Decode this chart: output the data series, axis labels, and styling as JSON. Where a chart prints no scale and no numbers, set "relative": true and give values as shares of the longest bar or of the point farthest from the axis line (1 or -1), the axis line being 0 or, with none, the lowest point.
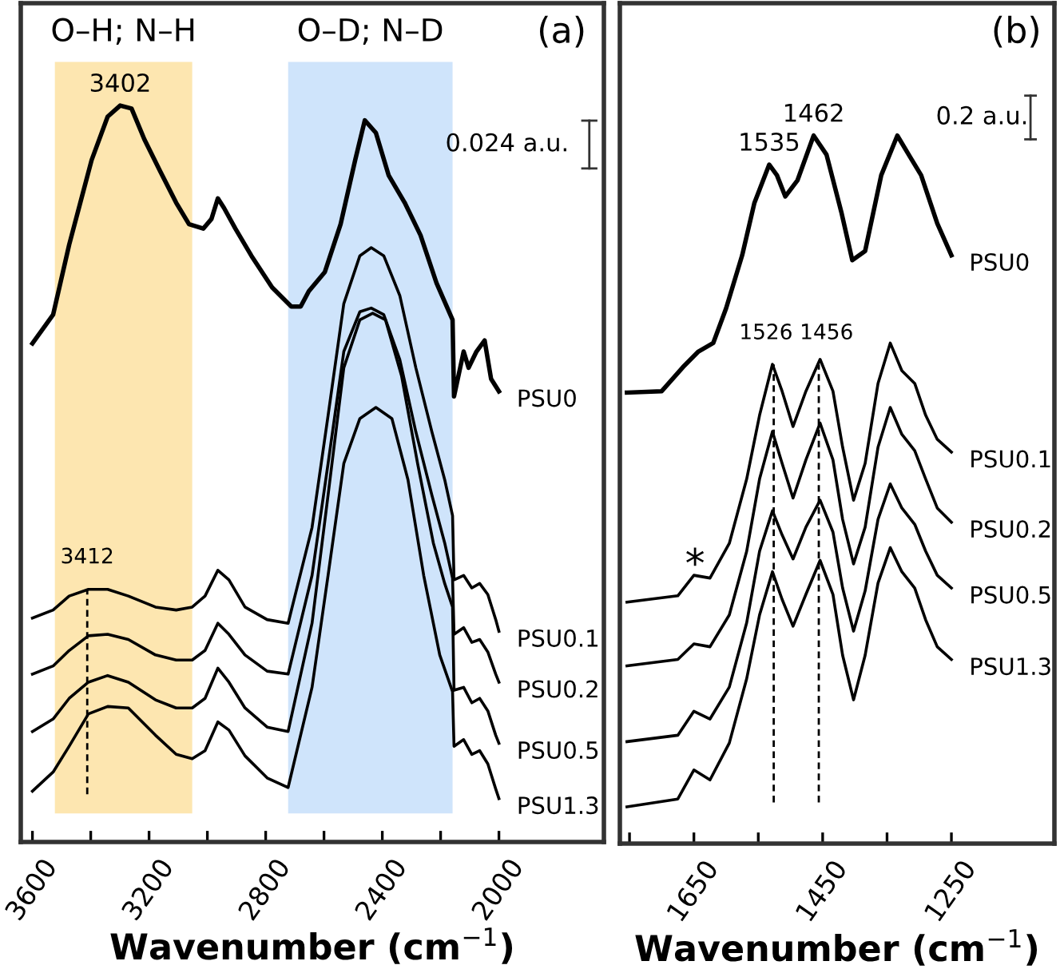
{
  "chart_data": [
    {
      "type": "line",
      "title": "(a)",
      "xlabel": "Wavenumber (cm$^{−1}$)",
      "relative": true,
      "xlim": [
        3640,
        1640
      ],
      "xticks": [
        3600,
        {
          "value": 3400,
          "label": null
        },
        3200,
        {
          "value": 3000,
          "label": null
        },
        2800,
        {
          "value": 2600,
          "label": null
        },
        2400,
        {
          "value": 2200,
          "label": null
        },
        2000
      ],
      "bands": [
        {
          "axis": "x",
          "from": 3523,
          "to": 3052,
          "label": "O–H; N–H",
          "color": "#fbcd61"
        },
        {
          "axis": "x",
          "from": 2723,
          "to": 2159,
          "label": "O–D; N–D",
          "color": "#9fc9f7"
        }
      ],
      "ref_lines": [
        {
          "axis": "x",
          "value": 3412,
          "label": "3412",
          "line_style": "dashed"
        }
      ],
      "annotations": [
        "0.024 a.u.",
        {
          "text": "3402",
          "x": 3299,
          "y": 1.0
        }
      ],
      "series": [
        {
          "name": "PSU0",
          "color": "#000000",
          "x": [
            3600,
            3529,
            3474,
            3397,
            3342,
            3299,
            3260,
            3216,
            3162,
            3107,
            3063,
            3014,
            2986,
            2964,
            2943,
            2904,
            2849,
            2778,
            2712,
            2680,
            2652,
            2597,
            2543,
            2493,
            2460,
            2422,
            2378,
            2323,
            2269,
            2214,
            2159,
            2154,
            2121,
            2104,
            2077,
            2049,
            2027,
            2000
          ],
          "values": [
            0.677,
            0.716,
            0.811,
            0.926,
            0.985,
            1.0,
            0.996,
            0.954,
            0.911,
            0.868,
            0.839,
            0.833,
            0.846,
            0.874,
            0.861,
            0.833,
            0.796,
            0.753,
            0.727,
            0.727,
            0.748,
            0.774,
            0.839,
            0.926,
            0.98,
            0.963,
            0.905,
            0.868,
            0.824,
            0.759,
            0.709,
            0.605,
            0.666,
            0.644,
            0.666,
            0.681,
            0.629,
            0.612
          ]
        },
        {
          "name": "PSU0.1",
          "color": "#000000",
          "x": [
            3600,
            3529,
            3474,
            3408,
            3342,
            3271,
            3178,
            3107,
            3052,
            3008,
            2964,
            2926,
            2871,
            2795,
            2723,
            2641,
            2586,
            2532,
            2477,
            2438,
            2395,
            2340,
            2285,
            2230,
            2186,
            2159,
            2154,
            2121,
            2093,
            2066,
            2038,
            2011,
            2000
          ],
          "values": [
            0.304,
            0.315,
            0.334,
            0.343,
            0.343,
            0.334,
            0.319,
            0.315,
            0.319,
            0.334,
            0.369,
            0.356,
            0.319,
            0.302,
            0.297,
            0.427,
            0.579,
            0.731,
            0.796,
            0.807,
            0.796,
            0.742,
            0.644,
            0.557,
            0.492,
            0.443,
            0.356,
            0.362,
            0.345,
            0.351,
            0.336,
            0.302,
            0.286
          ]
        },
        {
          "name": "PSU0.2",
          "color": "#000000",
          "x": [
            3600,
            3529,
            3474,
            3408,
            3342,
            3271,
            3178,
            3107,
            3052,
            3008,
            2964,
            2926,
            2871,
            2795,
            2723,
            2641,
            2586,
            2532,
            2477,
            2438,
            2395,
            2340,
            2285,
            2230,
            2186,
            2159,
            2154,
            2121,
            2093,
            2066,
            2038,
            2011,
            2000
          ],
          "values": [
            0.228,
            0.239,
            0.26,
            0.28,
            0.282,
            0.275,
            0.254,
            0.247,
            0.247,
            0.26,
            0.297,
            0.282,
            0.254,
            0.232,
            0.228,
            0.362,
            0.514,
            0.666,
            0.72,
            0.725,
            0.716,
            0.655,
            0.557,
            0.471,
            0.406,
            0.358,
            0.282,
            0.291,
            0.271,
            0.275,
            0.258,
            0.228,
            0.217
          ]
        },
        {
          "name": "PSU0.5",
          "color": "#000000",
          "x": [
            3600,
            3529,
            3474,
            3408,
            3342,
            3271,
            3178,
            3107,
            3052,
            3008,
            2964,
            2926,
            2871,
            2795,
            2723,
            2641,
            2586,
            2532,
            2477,
            2433,
            2389,
            2334,
            2279,
            2225,
            2186,
            2159,
            2154,
            2121,
            2093,
            2066,
            2038,
            2011,
            2000
          ],
          "values": [
            0.15,
            0.167,
            0.195,
            0.217,
            0.226,
            0.217,
            0.193,
            0.182,
            0.182,
            0.195,
            0.236,
            0.217,
            0.182,
            0.156,
            0.15,
            0.297,
            0.471,
            0.644,
            0.709,
            0.718,
            0.709,
            0.633,
            0.514,
            0.406,
            0.351,
            0.319,
            0.206,
            0.21,
            0.189,
            0.195,
            0.178,
            0.145,
            0.134
          ]
        },
        {
          "name": "PSU1.3",
          "color": "#000000",
          "x": [
            3600,
            3529,
            3474,
            3408,
            3342,
            3271,
            3178,
            3107,
            3052,
            3008,
            2964,
            2926,
            2871,
            2795,
            2723,
            2641,
            2586,
            2532,
            2477,
            2422,
            2367,
            2312,
            2258,
            2203,
            2159,
            2154,
            2121,
            2093,
            2066,
            2038,
            2011,
            2000
          ],
          "values": [
            0.069,
            0.095,
            0.13,
            0.174,
            0.184,
            0.182,
            0.145,
            0.119,
            0.113,
            0.124,
            0.163,
            0.152,
            0.117,
            0.087,
            0.074,
            0.21,
            0.362,
            0.514,
            0.575,
            0.59,
            0.575,
            0.492,
            0.362,
            0.254,
            0.204,
            0.13,
            0.139,
            0.119,
            0.124,
            0.106,
            0.072,
            0.059
          ]
        }
      ]
    },
    {
      "type": "line",
      "title": "(b)",
      "xlabel": "Wavenumber (cm$^{−1}$)",
      "relative": true,
      "xlim": [
        1765,
        1090
      ],
      "xticks": [
        {
          "value": 1750,
          "label": null
        },
        1650,
        {
          "value": 1550,
          "label": null
        },
        1450,
        {
          "value": 1350,
          "label": null
        },
        1250
      ],
      "ref_lines": [
        {
          "axis": "x",
          "value": 1526,
          "label": "1526",
          "line_style": "dashed"
        },
        {
          "axis": "x",
          "value": 1456,
          "label": "1456",
          "line_style": "dashed"
        }
      ],
      "annotations": [
        "0.2 a.u.",
        {
          "text": "1535",
          "x": 1533,
          "y": 0.959
        },
        {
          "text": "1462",
          "x": 1464,
          "y": 1.0
        },
        "*"
      ],
      "series": [
        {
          "name": "PSU0",
          "color": "#000000",
          "x": [
            1754,
            1700,
            1667,
            1643,
            1620,
            1600,
            1575,
            1556,
            1533,
            1521,
            1508,
            1489,
            1464,
            1444,
            1421,
            1404,
            1384,
            1359,
            1334,
            1315,
            1297,
            1272,
            1250
          ],
          "values": [
            0.637,
            0.639,
            0.673,
            0.695,
            0.707,
            0.756,
            0.831,
            0.905,
            0.959,
            0.944,
            0.914,
            0.937,
            1.0,
            0.973,
            0.892,
            0.824,
            0.837,
            0.944,
            1.0,
            0.971,
            0.944,
            0.876,
            0.831
          ]
        },
        {
          "name": "PSU0.1",
          "color": "#000000",
          "x": [
            1754,
            1675,
            1650,
            1625,
            1595,
            1568,
            1548,
            1528,
            1513,
            1496,
            1476,
            1454,
            1434,
            1419,
            1402,
            1384,
            1364,
            1345,
            1327,
            1307,
            1290,
            1272,
            1250
          ],
          "values": [
            0.341,
            0.35,
            0.379,
            0.375,
            0.424,
            0.515,
            0.605,
            0.677,
            0.639,
            0.589,
            0.639,
            0.684,
            0.639,
            0.56,
            0.485,
            0.537,
            0.65,
            0.707,
            0.668,
            0.65,
            0.605,
            0.571,
            0.553
          ]
        },
        {
          "name": "PSU0.2",
          "color": "#000000",
          "x": [
            1754,
            1675,
            1650,
            1625,
            1595,
            1568,
            1548,
            1528,
            1513,
            1496,
            1476,
            1454,
            1434,
            1419,
            1402,
            1384,
            1364,
            1345,
            1327,
            1307,
            1290,
            1272,
            1250
          ],
          "values": [
            0.251,
            0.26,
            0.282,
            0.278,
            0.323,
            0.413,
            0.515,
            0.582,
            0.537,
            0.488,
            0.542,
            0.594,
            0.542,
            0.458,
            0.395,
            0.447,
            0.56,
            0.616,
            0.578,
            0.555,
            0.515,
            0.474,
            0.454
          ]
        },
        {
          "name": "PSU0.5",
          "color": "#000000",
          "x": [
            1754,
            1675,
            1650,
            1625,
            1595,
            1568,
            1548,
            1528,
            1513,
            1496,
            1476,
            1454,
            1434,
            1419,
            1402,
            1384,
            1364,
            1345,
            1327,
            1307,
            1290,
            1272,
            1250
          ],
          "values": [
            0.144,
            0.153,
            0.187,
            0.176,
            0.221,
            0.312,
            0.413,
            0.47,
            0.436,
            0.402,
            0.447,
            0.485,
            0.44,
            0.361,
            0.3,
            0.357,
            0.458,
            0.508,
            0.474,
            0.451,
            0.413,
            0.379,
            0.361
          ]
        },
        {
          "name": "PSU1.3",
          "color": "#000000",
          "x": [
            1754,
            1675,
            1650,
            1625,
            1595,
            1568,
            1548,
            1528,
            1513,
            1496,
            1476,
            1454,
            1434,
            1419,
            1402,
            1384,
            1364,
            1345,
            1327,
            1307,
            1290,
            1272,
            1250
          ],
          "values": [
            0.052,
            0.063,
            0.104,
            0.09,
            0.142,
            0.233,
            0.323,
            0.384,
            0.345,
            0.307,
            0.352,
            0.4,
            0.352,
            0.266,
            0.203,
            0.266,
            0.368,
            0.418,
            0.384,
            0.361,
            0.316,
            0.278,
            0.26
          ]
        }
      ]
    }
  ]
}
